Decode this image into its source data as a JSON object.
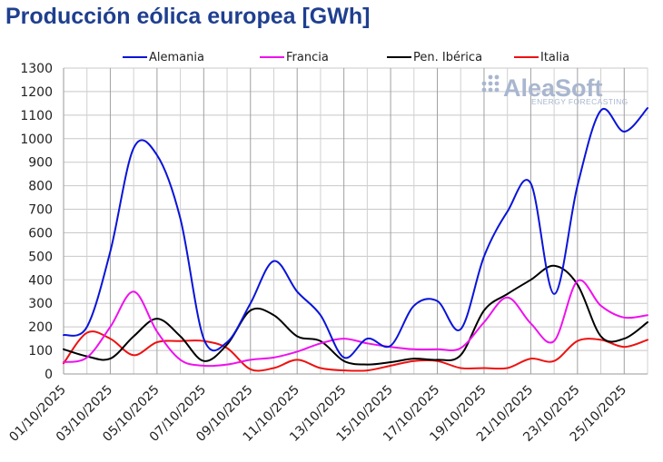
{
  "title": "Producción eólica europea [GWh]",
  "watermark": {
    "brand": "AleaSoft",
    "tagline": "ENERGY FORECASTING"
  },
  "chart_data": {
    "type": "line",
    "title": "Producción eólica europea [GWh]",
    "ylim": [
      0,
      1300
    ],
    "yticks": [
      0,
      100,
      200,
      300,
      400,
      500,
      600,
      700,
      800,
      900,
      1000,
      1100,
      1200,
      1300
    ],
    "x_labels": [
      "01/10/2025",
      "03/10/2025",
      "05/10/2025",
      "07/10/2025",
      "09/10/2025",
      "11/10/2025",
      "13/10/2025",
      "15/10/2025",
      "17/10/2025",
      "19/10/2025",
      "21/10/2025",
      "23/10/2025",
      "25/10/2025"
    ],
    "grid": true,
    "legend_position": "top",
    "x": [
      "01/10/2025",
      "02/10/2025",
      "03/10/2025",
      "04/10/2025",
      "05/10/2025",
      "06/10/2025",
      "07/10/2025",
      "08/10/2025",
      "09/10/2025",
      "10/10/2025",
      "11/10/2025",
      "12/10/2025",
      "13/10/2025",
      "14/10/2025",
      "15/10/2025",
      "16/10/2025",
      "17/10/2025",
      "18/10/2025",
      "19/10/2025",
      "20/10/2025",
      "21/10/2025",
      "22/10/2025",
      "23/10/2025",
      "24/10/2025",
      "25/10/2025",
      "26/10/2025"
    ],
    "series": [
      {
        "name": "Alemania",
        "color": "#0a14d8",
        "values": [
          165,
          200,
          520,
          960,
          930,
          660,
          150,
          135,
          300,
          480,
          350,
          250,
          70,
          150,
          120,
          290,
          310,
          190,
          500,
          690,
          810,
          340,
          800,
          1120,
          1030,
          1130
        ]
      },
      {
        "name": "Francia",
        "color": "#ee11ee",
        "values": [
          50,
          70,
          200,
          350,
          180,
          60,
          35,
          40,
          60,
          70,
          95,
          130,
          150,
          130,
          115,
          105,
          105,
          110,
          220,
          325,
          215,
          140,
          395,
          290,
          240,
          250
        ]
      },
      {
        "name": "Pen. Ibérica",
        "color": "#000000",
        "values": [
          105,
          75,
          65,
          160,
          235,
          160,
          55,
          125,
          270,
          250,
          160,
          140,
          55,
          40,
          50,
          65,
          60,
          80,
          270,
          340,
          400,
          460,
          380,
          160,
          150,
          220
        ]
      },
      {
        "name": "Italia",
        "color": "#ee1111",
        "values": [
          45,
          175,
          150,
          80,
          135,
          140,
          140,
          110,
          20,
          25,
          60,
          25,
          15,
          15,
          35,
          55,
          55,
          25,
          25,
          25,
          65,
          55,
          140,
          145,
          115,
          145
        ]
      }
    ]
  }
}
